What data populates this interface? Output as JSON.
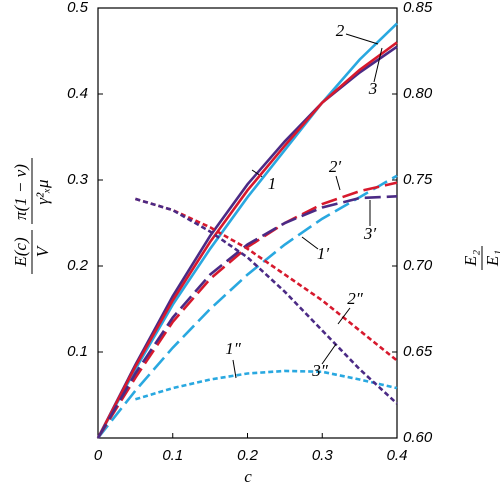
{
  "chart_data": {
    "type": "line",
    "x_label": "c",
    "y_label": {
      "num1": "E(c)",
      "den1": "V",
      "num2": "π(1 − ν)",
      "den2": "γ²ₓμ"
    },
    "y2_label": {
      "num": "E₂",
      "den": "E₁"
    },
    "x": [
      0,
      0.05,
      0.1,
      0.15,
      0.2,
      0.25,
      0.3,
      0.35,
      0.4
    ],
    "xlim": [
      0,
      0.4
    ],
    "xticks": [
      0,
      0.1,
      0.2,
      0.3,
      0.4
    ],
    "ylim": [
      0,
      0.5
    ],
    "yticks": [
      0.1,
      0.2,
      0.3,
      0.4,
      0.5
    ],
    "y2lim": [
      0.6,
      0.85
    ],
    "y2ticks": [
      {
        "value": 0.6,
        "label": "0.60"
      },
      0.65,
      {
        "value": 0.7,
        "label": "0.70"
      },
      0.75,
      {
        "value": 0.8,
        "label": "0.80"
      },
      0.85
    ],
    "series": [
      {
        "name": "1",
        "color": "#4b2a85",
        "style": "solid",
        "values": [
          0,
          0.085,
          0.165,
          0.235,
          0.295,
          0.345,
          0.39,
          0.425,
          0.455
        ]
      },
      {
        "name": "2",
        "color": "#29a8e0",
        "style": "solid",
        "values": [
          0,
          0.08,
          0.155,
          0.22,
          0.28,
          0.335,
          0.39,
          0.44,
          0.482
        ]
      },
      {
        "name": "3",
        "color": "#d7192d",
        "style": "solid",
        "values": [
          0,
          0.083,
          0.16,
          0.228,
          0.288,
          0.34,
          0.39,
          0.428,
          0.46
        ]
      },
      {
        "name": "1′",
        "color": "#29a8e0",
        "style": "long-dash",
        "values": [
          0,
          0.055,
          0.105,
          0.15,
          0.19,
          0.225,
          0.255,
          0.28,
          0.305
        ]
      },
      {
        "name": "2′",
        "color": "#d7192d",
        "style": "long-dash",
        "values": [
          0,
          0.07,
          0.135,
          0.185,
          0.222,
          0.25,
          0.272,
          0.287,
          0.297
        ]
      },
      {
        "name": "3′",
        "color": "#4b2a85",
        "style": "long-dash",
        "values": [
          0,
          0.075,
          0.14,
          0.19,
          0.225,
          0.25,
          0.268,
          0.279,
          0.281
        ]
      },
      {
        "name": "1″",
        "color": "#29a8e0",
        "style": "short-dash",
        "values": [
          null,
          0.045,
          0.058,
          0.068,
          0.075,
          0.078,
          0.077,
          0.068,
          0.058
        ]
      },
      {
        "name": "2″",
        "color": "#d7192d",
        "style": "short-dash",
        "values": [
          null,
          0.278,
          0.265,
          0.245,
          0.22,
          0.19,
          0.16,
          0.125,
          0.09
        ]
      },
      {
        "name": "3″",
        "color": "#4b2a85",
        "style": "short-dash",
        "values": [
          null,
          0.278,
          0.265,
          0.24,
          0.21,
          0.17,
          0.125,
          0.08,
          0.04
        ]
      }
    ]
  }
}
